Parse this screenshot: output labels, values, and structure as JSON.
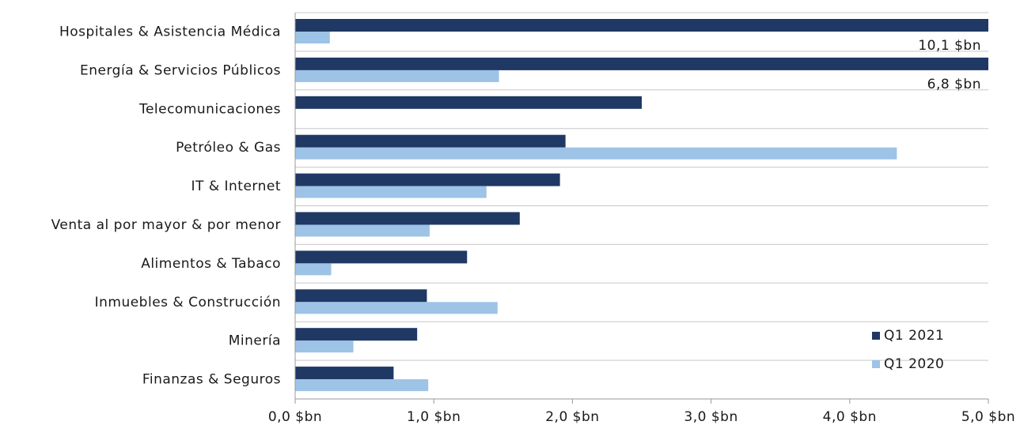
{
  "chart_data": {
    "type": "hbar",
    "categories": [
      "Hospitales & Asistencia Médica",
      "Energía & Servicios Públicos",
      "Telecomunicaciones",
      "Petróleo & Gas",
      "IT & Internet",
      "Venta al por mayor & por menor",
      "Alimentos & Tabaco",
      "Inmuebles & Construcción",
      "Minería",
      "Finanzas & Seguros"
    ],
    "series": [
      {
        "name": "Q1 2021",
        "color": "#1f3864",
        "values": [
          10.1,
          6.8,
          2.5,
          1.95,
          1.91,
          1.62,
          1.24,
          0.95,
          0.88,
          0.71
        ],
        "value_labels": [
          "10,1 $bn",
          "6,8 $bn",
          null,
          null,
          null,
          null,
          null,
          null,
          null,
          null
        ]
      },
      {
        "name": "Q1 2020",
        "color": "#9dc3e6",
        "values": [
          0.25,
          1.47,
          0,
          4.34,
          1.38,
          0.97,
          0.26,
          1.46,
          0.42,
          0.96
        ]
      }
    ],
    "xlim": [
      0,
      5
    ],
    "xticks": [
      {
        "value": 0,
        "label": "0,0 $bn"
      },
      {
        "value": 1,
        "label": "1,0 $bn"
      },
      {
        "value": 2,
        "label": "2,0 $bn"
      },
      {
        "value": 3,
        "label": "3,0 $bn"
      },
      {
        "value": 4,
        "label": "4,0 $bn"
      },
      {
        "value": 5,
        "label": "5,0 $bn"
      }
    ],
    "legend": "lower right"
  }
}
